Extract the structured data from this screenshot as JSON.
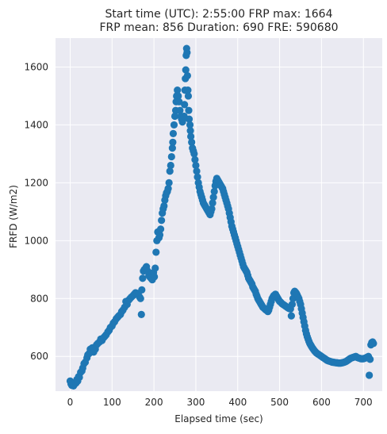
{
  "chart_data": {
    "type": "scatter",
    "title_line1": "Start time (UTC): 2:55:00 FRP max: 1664",
    "title_line2": "FRP mean: 856 Duration: 690 FRE: 590680",
    "xlabel": "Elapsed time (sec)",
    "ylabel": "FRFD (W/m2)",
    "xlim": [
      -35,
      745
    ],
    "ylim": [
      480,
      1700
    ],
    "xticks": [
      0,
      100,
      200,
      300,
      400,
      500,
      600,
      700
    ],
    "yticks": [
      600,
      800,
      1000,
      1200,
      1400,
      1600
    ],
    "grid": true,
    "colors": {
      "background": "#eaeaf2",
      "grid": "#ffffff",
      "marker": "#1f77b4",
      "text": "#262626"
    },
    "points": [
      [
        0,
        515
      ],
      [
        2,
        505
      ],
      [
        4,
        500
      ],
      [
        6,
        502
      ],
      [
        8,
        498
      ],
      [
        10,
        503
      ],
      [
        12,
        510
      ],
      [
        14,
        508
      ],
      [
        16,
        520
      ],
      [
        18,
        515
      ],
      [
        20,
        530
      ],
      [
        22,
        528
      ],
      [
        25,
        545
      ],
      [
        28,
        550
      ],
      [
        30,
        560
      ],
      [
        33,
        575
      ],
      [
        36,
        580
      ],
      [
        40,
        595
      ],
      [
        42,
        605
      ],
      [
        45,
        610
      ],
      [
        48,
        625
      ],
      [
        50,
        620
      ],
      [
        53,
        630
      ],
      [
        56,
        615
      ],
      [
        60,
        625
      ],
      [
        63,
        640
      ],
      [
        66,
        645
      ],
      [
        70,
        650
      ],
      [
        73,
        660
      ],
      [
        76,
        655
      ],
      [
        80,
        665
      ],
      [
        83,
        670
      ],
      [
        86,
        675
      ],
      [
        90,
        685
      ],
      [
        93,
        690
      ],
      [
        96,
        700
      ],
      [
        100,
        705
      ],
      [
        103,
        715
      ],
      [
        106,
        720
      ],
      [
        110,
        730
      ],
      [
        113,
        735
      ],
      [
        116,
        740
      ],
      [
        120,
        745
      ],
      [
        123,
        755
      ],
      [
        126,
        760
      ],
      [
        130,
        770
      ],
      [
        133,
        790
      ],
      [
        136,
        780
      ],
      [
        140,
        795
      ],
      [
        143,
        800
      ],
      [
        146,
        805
      ],
      [
        150,
        810
      ],
      [
        153,
        815
      ],
      [
        156,
        820
      ],
      [
        160,
        818
      ],
      [
        163,
        812
      ],
      [
        166,
        805
      ],
      [
        168,
        800
      ],
      [
        170,
        745
      ],
      [
        171,
        830
      ],
      [
        173,
        870
      ],
      [
        175,
        895
      ],
      [
        177,
        900
      ],
      [
        180,
        905
      ],
      [
        182,
        910
      ],
      [
        185,
        895
      ],
      [
        188,
        880
      ],
      [
        190,
        875
      ],
      [
        193,
        870
      ],
      [
        196,
        865
      ],
      [
        199,
        890
      ],
      [
        201,
        875
      ],
      [
        203,
        905
      ],
      [
        205,
        960
      ],
      [
        207,
        1000
      ],
      [
        209,
        1030
      ],
      [
        212,
        1010
      ],
      [
        214,
        1020
      ],
      [
        216,
        1040
      ],
      [
        218,
        1070
      ],
      [
        220,
        1095
      ],
      [
        222,
        1110
      ],
      [
        224,
        1120
      ],
      [
        226,
        1140
      ],
      [
        228,
        1155
      ],
      [
        230,
        1165
      ],
      [
        232,
        1170
      ],
      [
        234,
        1180
      ],
      [
        236,
        1200
      ],
      [
        238,
        1240
      ],
      [
        240,
        1260
      ],
      [
        242,
        1290
      ],
      [
        244,
        1320
      ],
      [
        245,
        1340
      ],
      [
        246,
        1370
      ],
      [
        248,
        1400
      ],
      [
        250,
        1430
      ],
      [
        252,
        1450
      ],
      [
        253,
        1480
      ],
      [
        254,
        1500
      ],
      [
        256,
        1520
      ],
      [
        258,
        1500
      ],
      [
        260,
        1480
      ],
      [
        262,
        1450
      ],
      [
        264,
        1430
      ],
      [
        266,
        1420
      ],
      [
        268,
        1410
      ],
      [
        270,
        1420
      ],
      [
        272,
        1430
      ],
      [
        273,
        1470
      ],
      [
        274,
        1520
      ],
      [
        275,
        1560
      ],
      [
        276,
        1590
      ],
      [
        277,
        1640
      ],
      [
        278,
        1664
      ],
      [
        279,
        1650
      ],
      [
        280,
        1570
      ],
      [
        281,
        1520
      ],
      [
        282,
        1500
      ],
      [
        283,
        1450
      ],
      [
        284,
        1420
      ],
      [
        286,
        1400
      ],
      [
        287,
        1380
      ],
      [
        288,
        1360
      ],
      [
        290,
        1340
      ],
      [
        292,
        1320
      ],
      [
        294,
        1310
      ],
      [
        296,
        1300
      ],
      [
        298,
        1280
      ],
      [
        300,
        1260
      ],
      [
        302,
        1240
      ],
      [
        304,
        1220
      ],
      [
        306,
        1200
      ],
      [
        308,
        1185
      ],
      [
        310,
        1170
      ],
      [
        312,
        1160
      ],
      [
        314,
        1150
      ],
      [
        316,
        1140
      ],
      [
        318,
        1130
      ],
      [
        320,
        1125
      ],
      [
        322,
        1120
      ],
      [
        324,
        1115
      ],
      [
        326,
        1110
      ],
      [
        328,
        1105
      ],
      [
        330,
        1100
      ],
      [
        332,
        1095
      ],
      [
        334,
        1090
      ],
      [
        336,
        1100
      ],
      [
        338,
        1110
      ],
      [
        340,
        1130
      ],
      [
        342,
        1150
      ],
      [
        344,
        1170
      ],
      [
        346,
        1190
      ],
      [
        348,
        1205
      ],
      [
        350,
        1215
      ],
      [
        352,
        1210
      ],
      [
        354,
        1205
      ],
      [
        356,
        1200
      ],
      [
        358,
        1195
      ],
      [
        360,
        1190
      ],
      [
        362,
        1185
      ],
      [
        364,
        1180
      ],
      [
        366,
        1170
      ],
      [
        368,
        1160
      ],
      [
        370,
        1150
      ],
      [
        372,
        1140
      ],
      [
        374,
        1130
      ],
      [
        376,
        1120
      ],
      [
        378,
        1110
      ],
      [
        380,
        1095
      ],
      [
        382,
        1080
      ],
      [
        384,
        1065
      ],
      [
        386,
        1050
      ],
      [
        388,
        1040
      ],
      [
        390,
        1030
      ],
      [
        392,
        1020
      ],
      [
        394,
        1010
      ],
      [
        396,
        1000
      ],
      [
        398,
        990
      ],
      [
        400,
        980
      ],
      [
        402,
        970
      ],
      [
        404,
        960
      ],
      [
        406,
        950
      ],
      [
        408,
        940
      ],
      [
        410,
        930
      ],
      [
        412,
        920
      ],
      [
        414,
        910
      ],
      [
        416,
        905
      ],
      [
        418,
        900
      ],
      [
        420,
        895
      ],
      [
        422,
        890
      ],
      [
        424,
        880
      ],
      [
        426,
        870
      ],
      [
        428,
        865
      ],
      [
        430,
        860
      ],
      [
        432,
        855
      ],
      [
        434,
        850
      ],
      [
        436,
        840
      ],
      [
        438,
        835
      ],
      [
        440,
        830
      ],
      [
        442,
        825
      ],
      [
        444,
        815
      ],
      [
        446,
        808
      ],
      [
        448,
        800
      ],
      [
        450,
        795
      ],
      [
        452,
        790
      ],
      [
        454,
        785
      ],
      [
        456,
        780
      ],
      [
        458,
        775
      ],
      [
        460,
        770
      ],
      [
        462,
        768
      ],
      [
        464,
        765
      ],
      [
        466,
        762
      ],
      [
        468,
        760
      ],
      [
        470,
        758
      ],
      [
        472,
        755
      ],
      [
        474,
        760
      ],
      [
        476,
        770
      ],
      [
        478,
        780
      ],
      [
        480,
        790
      ],
      [
        482,
        800
      ],
      [
        484,
        805
      ],
      [
        486,
        810
      ],
      [
        488,
        812
      ],
      [
        490,
        815
      ],
      [
        492,
        810
      ],
      [
        494,
        805
      ],
      [
        496,
        800
      ],
      [
        498,
        795
      ],
      [
        500,
        790
      ],
      [
        502,
        788
      ],
      [
        504,
        785
      ],
      [
        506,
        782
      ],
      [
        508,
        780
      ],
      [
        510,
        778
      ],
      [
        512,
        776
      ],
      [
        514,
        774
      ],
      [
        516,
        772
      ],
      [
        518,
        770
      ],
      [
        520,
        768
      ],
      [
        522,
        766
      ],
      [
        524,
        765
      ],
      [
        526,
        764
      ],
      [
        528,
        740
      ],
      [
        530,
        780
      ],
      [
        532,
        800
      ],
      [
        534,
        820
      ],
      [
        536,
        825
      ],
      [
        538,
        822
      ],
      [
        540,
        818
      ],
      [
        542,
        812
      ],
      [
        544,
        806
      ],
      [
        546,
        800
      ],
      [
        548,
        790
      ],
      [
        550,
        780
      ],
      [
        552,
        765
      ],
      [
        554,
        750
      ],
      [
        556,
        735
      ],
      [
        558,
        720
      ],
      [
        560,
        705
      ],
      [
        562,
        690
      ],
      [
        564,
        678
      ],
      [
        566,
        668
      ],
      [
        568,
        660
      ],
      [
        570,
        652
      ],
      [
        572,
        645
      ],
      [
        574,
        640
      ],
      [
        576,
        635
      ],
      [
        578,
        630
      ],
      [
        580,
        626
      ],
      [
        582,
        622
      ],
      [
        584,
        618
      ],
      [
        586,
        615
      ],
      [
        588,
        612
      ],
      [
        590,
        610
      ],
      [
        592,
        608
      ],
      [
        594,
        606
      ],
      [
        596,
        604
      ],
      [
        598,
        602
      ],
      [
        600,
        600
      ],
      [
        602,
        598
      ],
      [
        604,
        596
      ],
      [
        606,
        594
      ],
      [
        608,
        592
      ],
      [
        610,
        590
      ],
      [
        612,
        588
      ],
      [
        614,
        586
      ],
      [
        616,
        585
      ],
      [
        618,
        584
      ],
      [
        620,
        583
      ],
      [
        622,
        582
      ],
      [
        624,
        581
      ],
      [
        626,
        580
      ],
      [
        628,
        580
      ],
      [
        630,
        579
      ],
      [
        632,
        579
      ],
      [
        634,
        578
      ],
      [
        636,
        578
      ],
      [
        638,
        578
      ],
      [
        640,
        577
      ],
      [
        642,
        577
      ],
      [
        644,
        577
      ],
      [
        646,
        577
      ],
      [
        648,
        578
      ],
      [
        650,
        578
      ],
      [
        652,
        579
      ],
      [
        654,
        580
      ],
      [
        656,
        581
      ],
      [
        658,
        582
      ],
      [
        660,
        584
      ],
      [
        662,
        586
      ],
      [
        664,
        588
      ],
      [
        666,
        590
      ],
      [
        668,
        592
      ],
      [
        670,
        594
      ],
      [
        672,
        595
      ],
      [
        674,
        596
      ],
      [
        676,
        597
      ],
      [
        678,
        598
      ],
      [
        680,
        599
      ],
      [
        682,
        600
      ],
      [
        684,
        598
      ],
      [
        686,
        596
      ],
      [
        688,
        595
      ],
      [
        690,
        594
      ],
      [
        692,
        593
      ],
      [
        694,
        592
      ],
      [
        696,
        592
      ],
      [
        698,
        592
      ],
      [
        700,
        592
      ],
      [
        702,
        593
      ],
      [
        704,
        594
      ],
      [
        706,
        595
      ],
      [
        708,
        597
      ],
      [
        710,
        598
      ],
      [
        712,
        600
      ],
      [
        714,
        535
      ],
      [
        716,
        590
      ],
      [
        718,
        640
      ],
      [
        720,
        648
      ],
      [
        722,
        650
      ],
      [
        724,
        645
      ]
    ]
  }
}
